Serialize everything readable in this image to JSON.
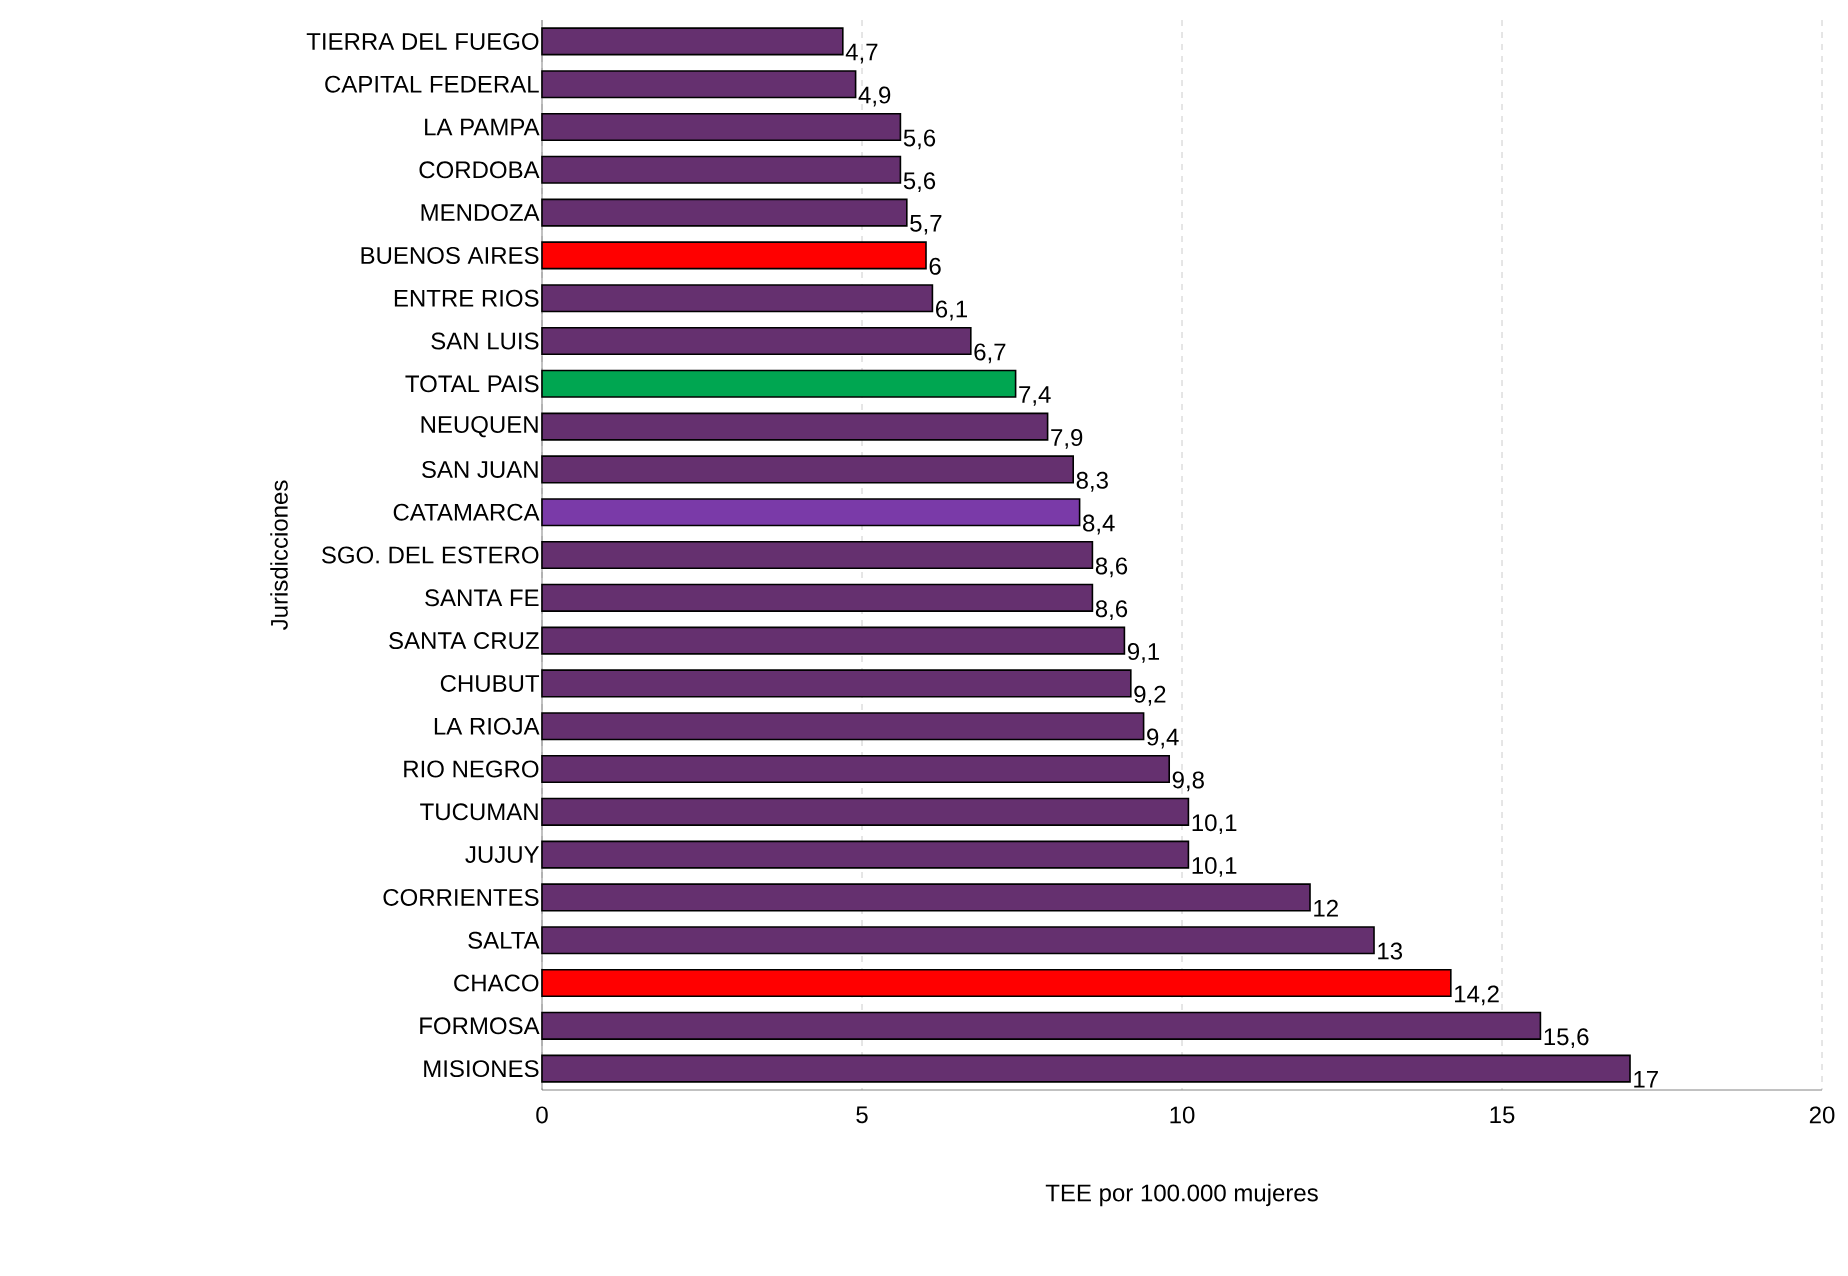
{
  "chart_data": {
    "type": "bar",
    "orientation": "horizontal",
    "xlabel": "TEE por 100.000 mujeres",
    "ylabel": "Jurisdicciones",
    "categories": [
      "TIERRA DEL FUEGO",
      "CAPITAL FEDERAL",
      "LA PAMPA",
      "CORDOBA",
      "MENDOZA",
      "BUENOS AIRES",
      "ENTRE RIOS",
      "SAN LUIS",
      "TOTAL PAIS",
      "NEUQUEN",
      "SAN JUAN",
      "CATAMARCA",
      "SGO. DEL ESTERO",
      "SANTA FE",
      "SANTA CRUZ",
      "CHUBUT",
      "LA RIOJA",
      "RIO NEGRO",
      "TUCUMAN",
      "JUJUY",
      "CORRIENTES",
      "SALTA",
      "CHACO",
      "FORMOSA",
      "MISIONES"
    ],
    "values": [
      4.7,
      4.9,
      5.6,
      5.6,
      5.7,
      6,
      6.1,
      6.7,
      7.4,
      7.9,
      8.3,
      8.4,
      8.6,
      8.6,
      9.1,
      9.2,
      9.4,
      9.8,
      10.1,
      10.1,
      12,
      13,
      14.2,
      15.6,
      17
    ],
    "value_labels": [
      "4,7",
      "4,9",
      "5,6",
      "5,6",
      "5,7",
      "6",
      "6,1",
      "6,7",
      "7,4",
      "7,9",
      "8,3",
      "8,4",
      "8,6",
      "8,6",
      "9,1",
      "9,2",
      "9,4",
      "9,8",
      "10,1",
      "10,1",
      "12",
      "13",
      "14,2",
      "15,6",
      "17"
    ],
    "colors": [
      "#65306f",
      "#65306f",
      "#65306f",
      "#65306f",
      "#65306f",
      "#ff0000",
      "#65306f",
      "#65306f",
      "#00a651",
      "#65306f",
      "#65306f",
      "#7a3aa8",
      "#65306f",
      "#65306f",
      "#65306f",
      "#65306f",
      "#65306f",
      "#65306f",
      "#65306f",
      "#65306f",
      "#65306f",
      "#65306f",
      "#ff0000",
      "#65306f",
      "#65306f"
    ],
    "xlim": [
      0,
      20
    ],
    "xticks": [
      0,
      5,
      10,
      15,
      20
    ],
    "grid": "x"
  }
}
